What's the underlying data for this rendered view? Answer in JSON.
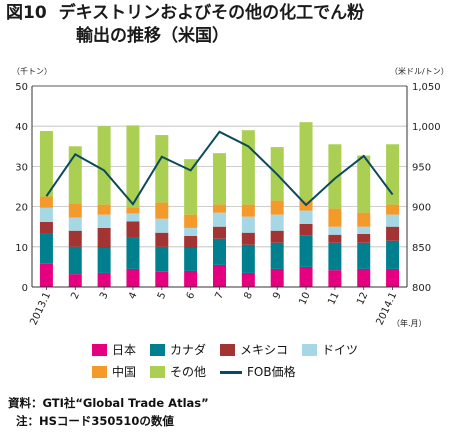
{
  "title": {
    "number": "図10",
    "line1": "デキストリンおよびその他の化工でん粉",
    "line2": "輸出の推移（米国）"
  },
  "axes": {
    "left_unit": "（千トン）",
    "right_unit": "（米ドル/トン）",
    "x_unit": "（年.月）"
  },
  "notes": {
    "source": "資料：GTI社“Global Trade Atlas”",
    "note": "注：HSコード350510の数値"
  },
  "colors": {
    "日本": "#e4007f",
    "カナダ": "#00808f",
    "メキシコ": "#a23434",
    "ドイツ": "#a6d7e4",
    "中国": "#f39a2b",
    "その他": "#aacf52",
    "FOB価格": "#0b4a5c"
  },
  "chart_data": {
    "type": "bar",
    "stacked": true,
    "categories": [
      "2013.1",
      "2",
      "3",
      "4",
      "5",
      "6",
      "7",
      "8",
      "9",
      "10",
      "11",
      "12",
      "2014.1"
    ],
    "series": [
      {
        "name": "日本",
        "values": [
          5.8,
          3.2,
          3.5,
          4.5,
          3.8,
          4.0,
          5.5,
          3.5,
          4.5,
          5.0,
          4.2,
          4.5,
          4.5
        ]
      },
      {
        "name": "カナダ",
        "values": [
          7.4,
          6.8,
          6.2,
          7.8,
          6.2,
          5.7,
          6.5,
          7.0,
          6.5,
          7.9,
          6.8,
          6.5,
          7.0
        ]
      },
      {
        "name": "メキシコ",
        "values": [
          3.0,
          4.0,
          5.0,
          4.0,
          3.5,
          3.0,
          3.0,
          3.0,
          3.0,
          2.8,
          2.0,
          2.2,
          3.5
        ]
      },
      {
        "name": "ドイツ",
        "values": [
          3.5,
          3.3,
          3.3,
          2.0,
          3.5,
          2.0,
          3.5,
          4.0,
          4.0,
          3.3,
          2.0,
          1.8,
          3.0
        ]
      },
      {
        "name": "中国",
        "values": [
          2.8,
          3.5,
          2.5,
          1.5,
          4.0,
          3.3,
          2.0,
          3.0,
          3.5,
          2.5,
          4.5,
          3.5,
          2.5
        ]
      },
      {
        "name": "その他",
        "values": [
          16.3,
          14.2,
          19.5,
          20.4,
          16.8,
          13.8,
          12.8,
          18.5,
          13.3,
          19.5,
          16.0,
          14.2,
          15.0
        ]
      }
    ],
    "line_series": {
      "name": "FOB価格",
      "axis": "right",
      "values": [
        913,
        965,
        945,
        903,
        962,
        945,
        993,
        975,
        940,
        902,
        935,
        963,
        915
      ]
    },
    "ylim_left": [
      0,
      50
    ],
    "yticks_left": [
      0,
      10,
      20,
      30,
      40,
      50
    ],
    "ylim_right": [
      800,
      1050
    ],
    "yticks_right": [
      "800",
      "850",
      "900",
      "950",
      "1,000",
      "1,050"
    ],
    "grid": true,
    "legend_position": "bottom"
  }
}
